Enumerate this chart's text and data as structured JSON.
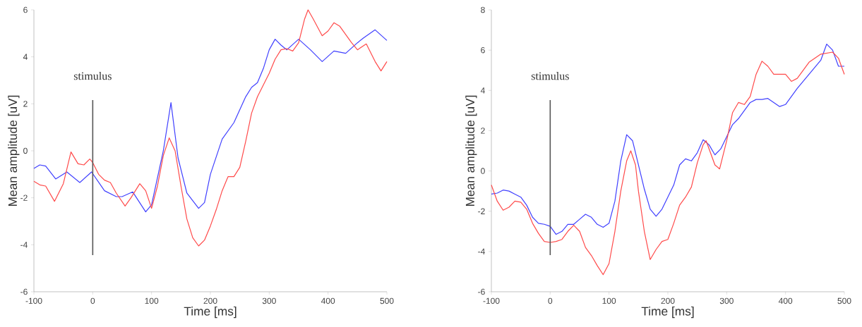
{
  "chart_data": [
    {
      "type": "line",
      "xlabel": "Time [ms]",
      "ylabel": "Mean amplitude [uV]",
      "xlim": [
        -100,
        500
      ],
      "ylim": [
        -6,
        6
      ],
      "xticks": [
        -100,
        0,
        100,
        200,
        300,
        400,
        500
      ],
      "yticks": [
        -6,
        -4,
        -2,
        0,
        2,
        4,
        6
      ],
      "ref_lines": [
        {
          "axis": "x",
          "value": 0,
          "label": "stimulus",
          "color": "#555555"
        }
      ],
      "series": [
        {
          "color": "#4040ff",
          "x": [
            -100,
            -90,
            -80,
            -63,
            -44,
            -22,
            -2,
            20,
            40,
            50,
            68,
            90,
            100,
            120,
            133,
            145,
            160,
            180,
            190,
            200,
            220,
            240,
            260,
            270,
            280,
            290,
            300,
            310,
            320,
            330,
            350,
            370,
            390,
            410,
            430,
            450,
            460,
            480,
            500
          ],
          "values": [
            -0.75,
            -0.6,
            -0.65,
            -1.2,
            -0.9,
            -1.35,
            -0.9,
            -1.7,
            -1.95,
            -1.95,
            -1.75,
            -2.6,
            -2.3,
            0,
            2.05,
            -0.3,
            -1.8,
            -2.45,
            -2.2,
            -1.0,
            0.5,
            1.2,
            2.3,
            2.7,
            2.9,
            3.5,
            4.3,
            4.75,
            4.5,
            4.3,
            4.75,
            4.3,
            3.8,
            4.25,
            4.15,
            4.6,
            4.8,
            5.15,
            4.7
          ]
        },
        {
          "color": "#ff4a4a",
          "x": [
            -100,
            -90,
            -80,
            -65,
            -50,
            -37,
            -25,
            -15,
            -5,
            0,
            10,
            20,
            30,
            40,
            55,
            65,
            80,
            90,
            100,
            110,
            120,
            130,
            140,
            150,
            160,
            170,
            180,
            190,
            200,
            210,
            220,
            230,
            240,
            250,
            260,
            270,
            280,
            290,
            300,
            310,
            320,
            330,
            340,
            350,
            360,
            366,
            375,
            390,
            400,
            410,
            420,
            440,
            450,
            465,
            480,
            490,
            500
          ],
          "values": [
            -1.3,
            -1.45,
            -1.5,
            -2.15,
            -1.4,
            -0.05,
            -0.55,
            -0.6,
            -0.35,
            -0.5,
            -1.0,
            -1.25,
            -1.35,
            -1.8,
            -2.35,
            -2.0,
            -1.4,
            -1.7,
            -2.45,
            -1.5,
            -0.2,
            0.55,
            0,
            -1.5,
            -2.9,
            -3.7,
            -4.05,
            -3.8,
            -3.2,
            -2.5,
            -1.7,
            -1.1,
            -1.1,
            -0.7,
            0.4,
            1.6,
            2.3,
            2.8,
            3.3,
            3.9,
            4.3,
            4.35,
            4.25,
            4.6,
            5.6,
            6.0,
            5.6,
            4.9,
            5.1,
            5.45,
            5.3,
            4.6,
            4.3,
            4.55,
            3.8,
            3.4,
            3.8
          ]
        }
      ]
    },
    {
      "type": "line",
      "xlabel": "Time [ms]",
      "ylabel": "Mean amplitude [uV]",
      "xlim": [
        -100,
        500
      ],
      "ylim": [
        -6,
        8
      ],
      "xticks": [
        -100,
        0,
        100,
        200,
        300,
        400,
        500
      ],
      "yticks": [
        -6,
        -4,
        -2,
        0,
        2,
        4,
        6,
        8
      ],
      "ref_lines": [
        {
          "axis": "x",
          "value": 0,
          "label": "stimulus",
          "color": "#555555"
        }
      ],
      "series": [
        {
          "color": "#4040ff",
          "x": [
            -100,
            -90,
            -80,
            -70,
            -60,
            -50,
            -40,
            -30,
            -20,
            -10,
            0,
            10,
            20,
            30,
            40,
            50,
            60,
            70,
            80,
            90,
            100,
            110,
            120,
            130,
            140,
            150,
            160,
            170,
            180,
            190,
            200,
            210,
            220,
            230,
            240,
            250,
            260,
            270,
            280,
            290,
            300,
            310,
            320,
            330,
            340,
            350,
            360,
            370,
            380,
            390,
            400,
            410,
            420,
            440,
            460,
            470,
            480,
            490,
            500
          ],
          "values": [
            -1.15,
            -1.1,
            -0.95,
            -1.0,
            -1.15,
            -1.3,
            -1.7,
            -2.3,
            -2.6,
            -2.65,
            -2.75,
            -3.15,
            -3.0,
            -2.65,
            -2.65,
            -2.4,
            -2.15,
            -2.3,
            -2.65,
            -2.8,
            -2.6,
            -1.5,
            0.5,
            1.8,
            1.5,
            0.3,
            -0.9,
            -1.9,
            -2.25,
            -1.9,
            -1.3,
            -0.7,
            0.3,
            0.6,
            0.5,
            0.9,
            1.55,
            1.3,
            0.8,
            1.1,
            1.7,
            2.3,
            2.6,
            3.0,
            3.4,
            3.55,
            3.55,
            3.6,
            3.4,
            3.2,
            3.3,
            3.7,
            4.1,
            4.8,
            5.5,
            6.3,
            6.0,
            5.2,
            5.2
          ]
        },
        {
          "color": "#ff4a4a",
          "x": [
            -100,
            -90,
            -80,
            -70,
            -60,
            -50,
            -40,
            -30,
            -20,
            -10,
            0,
            10,
            20,
            30,
            40,
            50,
            60,
            70,
            80,
            90,
            100,
            110,
            120,
            130,
            137,
            145,
            150,
            160,
            170,
            180,
            190,
            200,
            210,
            220,
            230,
            240,
            250,
            260,
            265,
            280,
            288,
            300,
            310,
            320,
            330,
            340,
            350,
            360,
            370,
            380,
            400,
            410,
            420,
            440,
            460,
            480,
            490,
            500
          ],
          "values": [
            -0.7,
            -1.5,
            -1.95,
            -1.8,
            -1.5,
            -1.55,
            -1.9,
            -2.6,
            -3.1,
            -3.5,
            -3.55,
            -3.5,
            -3.4,
            -3.0,
            -2.7,
            -3.0,
            -3.8,
            -4.2,
            -4.7,
            -5.15,
            -4.6,
            -3.0,
            -1.0,
            0.5,
            1.0,
            0.3,
            -1.0,
            -3.0,
            -4.4,
            -3.9,
            -3.5,
            -3.4,
            -2.6,
            -1.7,
            -1.3,
            -0.8,
            0.4,
            1.3,
            1.5,
            0.3,
            0.1,
            1.5,
            2.9,
            3.4,
            3.3,
            3.7,
            4.8,
            5.45,
            5.2,
            4.8,
            4.8,
            4.45,
            4.6,
            5.4,
            5.8,
            5.9,
            5.6,
            4.8
          ]
        }
      ]
    }
  ]
}
